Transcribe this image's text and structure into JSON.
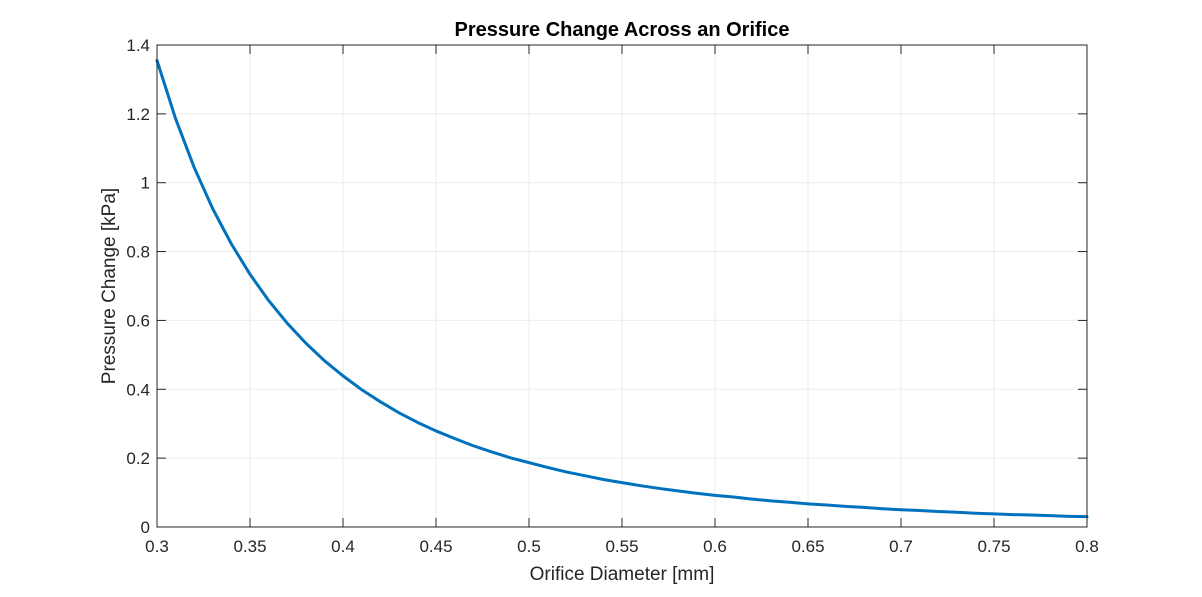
{
  "chart_data": {
    "type": "line",
    "title": "Pressure Change Across an Orifice",
    "xlabel": "Orifice Diameter [mm]",
    "ylabel": "Pressure Change [kPa]",
    "xlim": [
      0.3,
      0.8
    ],
    "ylim": [
      0,
      1.4
    ],
    "x_ticks": [
      0.3,
      0.35,
      0.4,
      0.45,
      0.5,
      0.55,
      0.6,
      0.65,
      0.7,
      0.75,
      0.8
    ],
    "x_tick_labels": [
      "0.3",
      "0.35",
      "0.4",
      "0.45",
      "0.5",
      "0.55",
      "0.6",
      "0.65",
      "0.7",
      "0.75",
      "0.8"
    ],
    "y_ticks": [
      0,
      0.2,
      0.4,
      0.6,
      0.8,
      1,
      1.2,
      1.4
    ],
    "y_tick_labels": [
      "0",
      "0.2",
      "0.4",
      "0.6",
      "0.8",
      "1",
      "1.2",
      "1.4"
    ],
    "grid": true,
    "line_color": "#0072BD",
    "series": [
      {
        "x": [
          0.3,
          0.31,
          0.32,
          0.33,
          0.34,
          0.35,
          0.36,
          0.37,
          0.38,
          0.39,
          0.4,
          0.41,
          0.42,
          0.43,
          0.44,
          0.45,
          0.46,
          0.47,
          0.48,
          0.49,
          0.5,
          0.51,
          0.52,
          0.53,
          0.54,
          0.55,
          0.56,
          0.57,
          0.58,
          0.59,
          0.6,
          0.61,
          0.62,
          0.63,
          0.64,
          0.65,
          0.66,
          0.67,
          0.68,
          0.69,
          0.7,
          0.71,
          0.72,
          0.73,
          0.74,
          0.75,
          0.76,
          0.77,
          0.78,
          0.79,
          0.8
        ],
        "y": [
          1.355,
          1.186,
          1.044,
          0.924,
          0.822,
          0.734,
          0.658,
          0.592,
          0.534,
          0.483,
          0.439,
          0.399,
          0.364,
          0.332,
          0.304,
          0.279,
          0.257,
          0.236,
          0.218,
          0.201,
          0.187,
          0.173,
          0.16,
          0.149,
          0.138,
          0.129,
          0.12,
          0.112,
          0.105,
          0.098,
          0.092,
          0.087,
          0.081,
          0.076,
          0.072,
          0.067,
          0.064,
          0.06,
          0.057,
          0.053,
          0.05,
          0.048,
          0.045,
          0.043,
          0.04,
          0.038,
          0.036,
          0.035,
          0.033,
          0.031,
          0.03
        ]
      }
    ]
  }
}
